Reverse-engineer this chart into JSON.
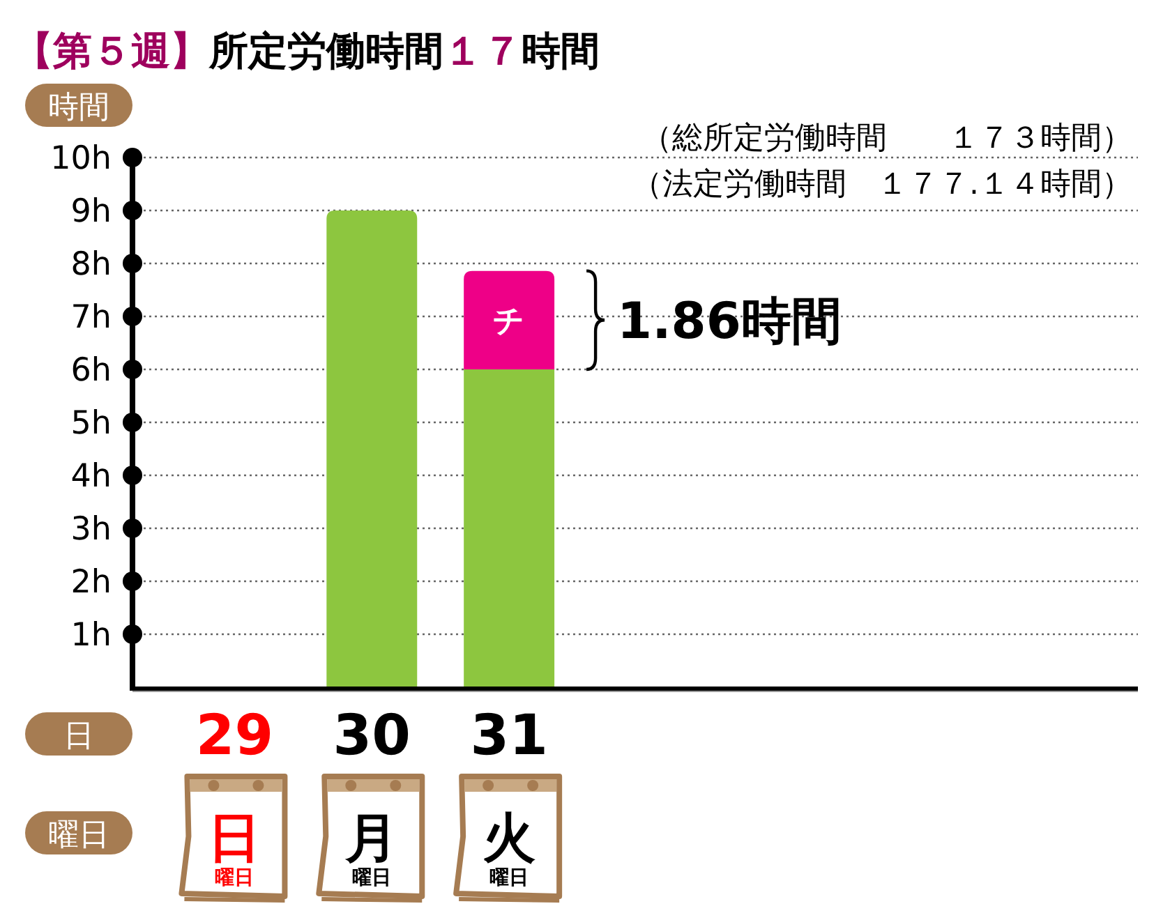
{
  "chart_data": {
    "type": "bar",
    "stacked": true,
    "title": "【第５週】所定労働時間１７時間",
    "ylabel": "時間",
    "xlabel": "日",
    "categories": [
      "29",
      "30",
      "31",
      null,
      null,
      null,
      null
    ],
    "series": [
      {
        "color": "#8dc63f",
        "values": [
          null,
          9,
          6,
          null,
          null,
          null,
          null
        ]
      },
      {
        "name": "チ",
        "color": "#ee0087",
        "values": [
          null,
          null,
          1.86,
          null,
          null,
          null,
          null
        ]
      }
    ],
    "ylim": [
      0,
      10
    ],
    "yticks": [
      {
        "value": 1,
        "label": "1h"
      },
      {
        "value": 2,
        "label": "2h"
      },
      {
        "value": 3,
        "label": "3h"
      },
      {
        "value": 4,
        "label": "4h"
      },
      {
        "value": 5,
        "label": "5h"
      },
      {
        "value": 6,
        "label": "6h"
      },
      {
        "value": 7,
        "label": "7h"
      },
      {
        "value": 8,
        "label": "8h"
      },
      {
        "value": 9,
        "label": "9h"
      },
      {
        "value": 10,
        "label": "10h"
      }
    ],
    "grid": "y",
    "annotations": [
      "（総所定労働時間　　１７３時間）",
      "（法定労働時間　１７７.１４時間）",
      {
        "text": "1.86時間",
        "x": "31",
        "y": 7.86
      },
      "曜日",
      "日",
      "曜日",
      "月",
      "曜日",
      "火",
      "曜日"
    ]
  }
}
